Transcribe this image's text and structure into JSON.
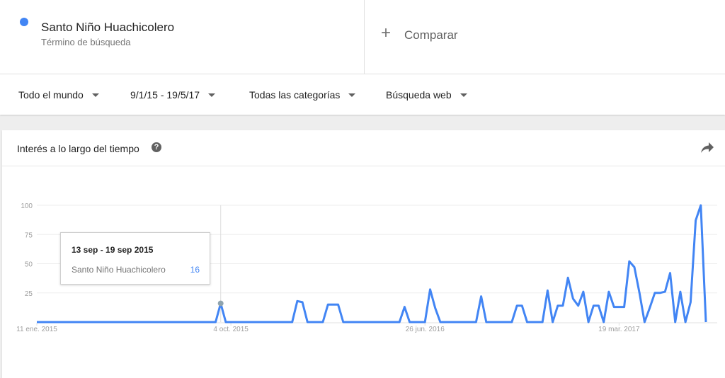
{
  "search_term": {
    "name": "Santo Niño Huachicolero",
    "subtitle": "Término de búsqueda",
    "color": "#4285f4"
  },
  "compare": {
    "icon": "+",
    "label": "Comparar"
  },
  "filters": {
    "region": "Todo el mundo",
    "date_range": "9/1/15 - 19/5/17",
    "category": "Todas las categorías",
    "search_type": "Búsqueda web"
  },
  "card": {
    "title": "Interés a lo largo del tiempo",
    "help_icon": "?",
    "share_icon": "share-icon"
  },
  "tooltip": {
    "date": "13 sep - 19 sep 2015",
    "term": "Santo Niño Huachicolero",
    "value": "16"
  },
  "chart_data": {
    "type": "line",
    "ylim": [
      0,
      100
    ],
    "yticks": [
      "100",
      "75",
      "50",
      "25"
    ],
    "xtick_labels": [
      "11 ene. 2015",
      "4 oct. 2015",
      "26 jun. 2016",
      "19 mar. 2017"
    ],
    "series": [
      {
        "name": "Santo Niño Huachicolero",
        "color": "#4285f4",
        "values": [
          0,
          0,
          0,
          0,
          0,
          0,
          0,
          0,
          0,
          0,
          0,
          0,
          0,
          0,
          0,
          0,
          0,
          0,
          0,
          0,
          0,
          0,
          0,
          0,
          0,
          0,
          0,
          0,
          0,
          0,
          0,
          0,
          0,
          0,
          0,
          0,
          16,
          0,
          0,
          0,
          0,
          0,
          0,
          0,
          0,
          0,
          0,
          0,
          0,
          0,
          0,
          18,
          17,
          0,
          0,
          0,
          0,
          15,
          15,
          15,
          0,
          0,
          0,
          0,
          0,
          0,
          0,
          0,
          0,
          0,
          0,
          0,
          13,
          0,
          0,
          0,
          0,
          28,
          12,
          0,
          0,
          0,
          0,
          0,
          0,
          0,
          0,
          22,
          0,
          0,
          0,
          0,
          0,
          0,
          14,
          14,
          0,
          0,
          0,
          0,
          27,
          0,
          14,
          14,
          38,
          20,
          14,
          26,
          0,
          14,
          14,
          0,
          26,
          13,
          13,
          13,
          52,
          47,
          25,
          0,
          12,
          25,
          25,
          26,
          42,
          0,
          26,
          0,
          17,
          87,
          100,
          0
        ]
      }
    ],
    "hover_index": 36
  }
}
